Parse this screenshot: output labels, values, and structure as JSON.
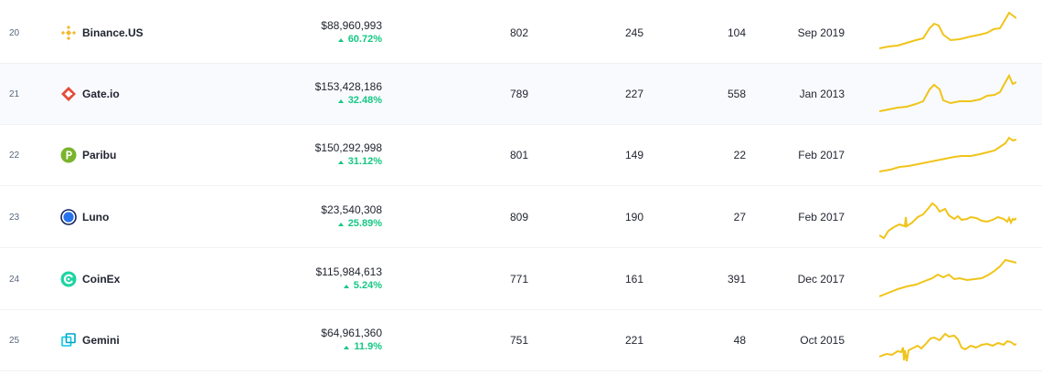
{
  "accent_color": "#16c784",
  "sparkline_color": "#f0c419",
  "rows": [
    {
      "rank": "20",
      "name": "Binance.US",
      "icon": "binance-us-logo-icon",
      "volume": "$88,960,993",
      "change": "60.72%",
      "markets": "802",
      "coins": "245",
      "pairs": "104",
      "launched": "Sep 2019"
    },
    {
      "rank": "21",
      "name": "Gate.io",
      "icon": "gate-io-logo-icon",
      "volume": "$153,428,186",
      "change": "32.48%",
      "markets": "789",
      "coins": "227",
      "pairs": "558",
      "launched": "Jan 2013"
    },
    {
      "rank": "22",
      "name": "Paribu",
      "icon": "paribu-logo-icon",
      "volume": "$150,292,998",
      "change": "31.12%",
      "markets": "801",
      "coins": "149",
      "pairs": "22",
      "launched": "Feb 2017"
    },
    {
      "rank": "23",
      "name": "Luno",
      "icon": "luno-logo-icon",
      "volume": "$23,540,308",
      "change": "25.89%",
      "markets": "809",
      "coins": "190",
      "pairs": "27",
      "launched": "Feb 2017"
    },
    {
      "rank": "24",
      "name": "CoinEx",
      "icon": "coinex-logo-icon",
      "volume": "$115,984,613",
      "change": "5.24%",
      "markets": "771",
      "coins": "161",
      "pairs": "391",
      "launched": "Dec 2017"
    },
    {
      "rank": "25",
      "name": "Gemini",
      "icon": "gemini-logo-icon",
      "volume": "$64,961,360",
      "change": "11.9%",
      "markets": "751",
      "coins": "221",
      "pairs": "48",
      "launched": "Oct 2015"
    }
  ]
}
